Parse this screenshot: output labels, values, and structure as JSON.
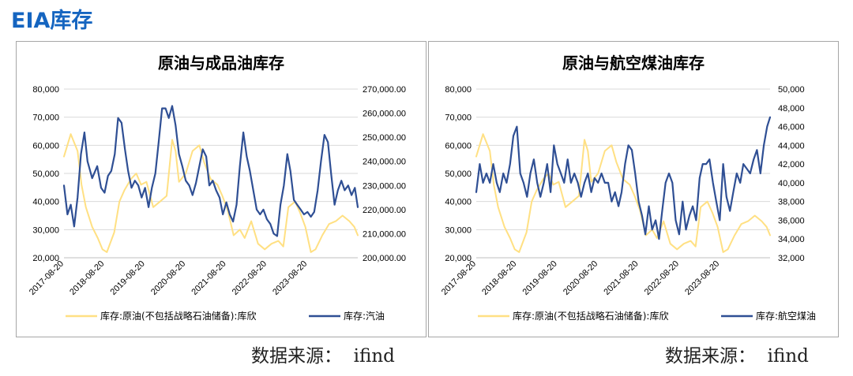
{
  "page": {
    "title": "EIA库存"
  },
  "sources": {
    "left": "数据来源：  ifind",
    "right": "数据来源：  ifind"
  },
  "colors": {
    "crude": "#ffe083",
    "product": "#2f4f94",
    "grid": "#d9d9d9",
    "axis": "#bfbfbf"
  },
  "chart_data": [
    {
      "type": "line",
      "title": "原油与成品油库存",
      "x_ticks": [
        "2017-08-20",
        "2018-08-20",
        "2019-08-20",
        "2020-08-20",
        "2021-08-20",
        "2022-08-20",
        "2023-08-20"
      ],
      "x_range": [
        "2017-08-20",
        "2024-11-15"
      ],
      "y_left": {
        "range": [
          20000,
          80000
        ],
        "ticks": [
          "20,000",
          "30,000",
          "40,000",
          "50,000",
          "60,000",
          "70,000",
          "80,000"
        ]
      },
      "y_right": {
        "range": [
          200000,
          270000
        ],
        "ticks": [
          "200,000.00",
          "210,000.00",
          "220,000.00",
          "230,000.00",
          "240,000.00",
          "250,000.00",
          "260,000.00",
          "270,000.00"
        ]
      },
      "grid": true,
      "legend_position": "bottom",
      "series": [
        {
          "name": "库存:原油(不包括战略石油储备):库欣",
          "axis": "left",
          "color": "#ffe083",
          "x": [
            "2017-08-20",
            "2017-10-20",
            "2017-12-20",
            "2018-01-25",
            "2018-03-05",
            "2018-05-01",
            "2018-06-20",
            "2018-08-01",
            "2018-09-10",
            "2018-11-15",
            "2019-01-01",
            "2019-02-15",
            "2019-04-15",
            "2019-06-01",
            "2019-07-15",
            "2019-09-01",
            "2019-11-01",
            "2020-01-01",
            "2020-03-01",
            "2020-04-20",
            "2020-05-20",
            "2020-06-20",
            "2020-08-20",
            "2020-10-20",
            "2020-12-20",
            "2021-02-01",
            "2021-04-01",
            "2021-06-01",
            "2021-07-15",
            "2021-09-01",
            "2021-10-25",
            "2021-12-20",
            "2022-02-01",
            "2022-04-01",
            "2022-06-01",
            "2022-08-01",
            "2022-10-01",
            "2022-12-01",
            "2023-01-15",
            "2023-03-01",
            "2023-05-01",
            "2023-06-15",
            "2023-08-01",
            "2023-09-20",
            "2023-11-01",
            "2024-01-01",
            "2024-03-01",
            "2024-05-01",
            "2024-07-01",
            "2024-09-01",
            "2024-10-15",
            "2024-11-15"
          ],
          "y": [
            56000,
            64000,
            58000,
            46000,
            38000,
            31000,
            27000,
            23000,
            22000,
            29000,
            40000,
            44000,
            48000,
            50000,
            46000,
            47000,
            38000,
            40000,
            42000,
            62000,
            58000,
            47000,
            50000,
            58000,
            60000,
            54000,
            48000,
            46000,
            42000,
            37000,
            28000,
            30000,
            27000,
            33000,
            25000,
            23000,
            25000,
            26000,
            24000,
            38000,
            40000,
            36000,
            31000,
            22000,
            23000,
            28000,
            32000,
            33000,
            35000,
            33000,
            31000,
            28000
          ]
        },
        {
          "name": "库存:汽油",
          "axis": "right",
          "color": "#2f4f94",
          "x": [
            "2017-08-20",
            "2017-09-20",
            "2017-10-20",
            "2017-11-20",
            "2017-12-20",
            "2018-01-20",
            "2018-02-20",
            "2018-03-20",
            "2018-05-01",
            "2018-06-15",
            "2018-07-20",
            "2018-08-20",
            "2018-09-20",
            "2018-10-20",
            "2018-11-20",
            "2018-12-20",
            "2019-01-20",
            "2019-02-20",
            "2019-03-20",
            "2019-04-20",
            "2019-05-20",
            "2019-06-20",
            "2019-07-20",
            "2019-08-20",
            "2019-09-20",
            "2019-10-20",
            "2019-11-20",
            "2019-12-20",
            "2020-01-20",
            "2020-02-20",
            "2020-03-20",
            "2020-04-20",
            "2020-05-20",
            "2020-06-20",
            "2020-07-20",
            "2020-08-20",
            "2020-09-20",
            "2020-10-20",
            "2020-11-20",
            "2020-12-20",
            "2021-01-20",
            "2021-02-20",
            "2021-03-20",
            "2021-04-20",
            "2021-05-20",
            "2021-06-20",
            "2021-07-20",
            "2021-08-20",
            "2021-09-20",
            "2021-10-20",
            "2021-11-20",
            "2021-12-20",
            "2022-01-20",
            "2022-02-20",
            "2022-03-20",
            "2022-04-20",
            "2022-05-20",
            "2022-06-20",
            "2022-07-20",
            "2022-08-20",
            "2022-09-20",
            "2022-10-20",
            "2022-11-20",
            "2022-12-20",
            "2023-01-20",
            "2023-02-20",
            "2023-03-20",
            "2023-04-20",
            "2023-05-20",
            "2023-06-20",
            "2023-07-20",
            "2023-08-20",
            "2023-09-20",
            "2023-10-20",
            "2023-11-20",
            "2023-12-20",
            "2024-01-20",
            "2024-02-20",
            "2024-03-20",
            "2024-04-20",
            "2024-05-20",
            "2024-06-20",
            "2024-07-20",
            "2024-08-20",
            "2024-09-20",
            "2024-10-20",
            "2024-11-15"
          ],
          "y": [
            230000,
            218000,
            222000,
            213000,
            225000,
            243000,
            252000,
            240000,
            233000,
            238000,
            229000,
            227000,
            234000,
            236000,
            243000,
            258000,
            256000,
            245000,
            236000,
            229000,
            232000,
            230000,
            225000,
            229000,
            221000,
            229000,
            235000,
            248000,
            262000,
            262000,
            258000,
            263000,
            255000,
            243000,
            238000,
            232000,
            230000,
            226000,
            231000,
            238000,
            245000,
            242000,
            230000,
            232000,
            228000,
            225000,
            218000,
            223000,
            218000,
            215000,
            222000,
            238000,
            252000,
            242000,
            236000,
            228000,
            220000,
            218000,
            220000,
            216000,
            214000,
            210000,
            209000,
            222000,
            230000,
            243000,
            236000,
            224000,
            222000,
            220000,
            218000,
            219000,
            217000,
            219000,
            228000,
            240000,
            251000,
            248000,
            235000,
            222000,
            228000,
            232000,
            228000,
            230000,
            226000,
            229000,
            221000
          ]
        }
      ]
    },
    {
      "type": "line",
      "title": "原油与航空煤油库存",
      "x_ticks": [
        "2017-08-20",
        "2018-08-20",
        "2019-08-20",
        "2020-08-20",
        "2021-08-20",
        "2022-08-20",
        "2023-08-20"
      ],
      "x_range": [
        "2017-08-20",
        "2024-11-15"
      ],
      "y_left": {
        "range": [
          20000,
          80000
        ],
        "ticks": [
          "20,000",
          "30,000",
          "40,000",
          "50,000",
          "60,000",
          "70,000",
          "80,000"
        ]
      },
      "y_right": {
        "range": [
          32000,
          50000
        ],
        "ticks": [
          "32,000",
          "34,000",
          "36,000",
          "38,000",
          "40,000",
          "42,000",
          "44,000",
          "46,000",
          "48,000",
          "50,000"
        ]
      },
      "grid": true,
      "legend_position": "bottom",
      "series": [
        {
          "name": "库存:原油(不包括战略石油储备):库欣",
          "axis": "left",
          "color": "#ffe083",
          "x": [
            "2017-08-20",
            "2017-10-20",
            "2017-12-20",
            "2018-01-25",
            "2018-03-05",
            "2018-05-01",
            "2018-06-20",
            "2018-08-01",
            "2018-09-10",
            "2018-11-15",
            "2019-01-01",
            "2019-02-15",
            "2019-04-15",
            "2019-06-01",
            "2019-07-15",
            "2019-09-01",
            "2019-11-01",
            "2020-01-01",
            "2020-03-01",
            "2020-04-20",
            "2020-05-20",
            "2020-06-20",
            "2020-08-20",
            "2020-10-20",
            "2020-12-20",
            "2021-02-01",
            "2021-04-01",
            "2021-06-01",
            "2021-07-15",
            "2021-09-01",
            "2021-10-25",
            "2021-12-20",
            "2022-02-01",
            "2022-04-01",
            "2022-06-01",
            "2022-08-01",
            "2022-10-01",
            "2022-12-01",
            "2023-01-15",
            "2023-03-01",
            "2023-05-01",
            "2023-06-15",
            "2023-08-01",
            "2023-09-20",
            "2023-11-01",
            "2024-01-01",
            "2024-03-01",
            "2024-05-01",
            "2024-07-01",
            "2024-09-01",
            "2024-10-15",
            "2024-11-15"
          ],
          "y": [
            56000,
            64000,
            58000,
            46000,
            38000,
            31000,
            27000,
            23000,
            22000,
            29000,
            40000,
            44000,
            48000,
            50000,
            46000,
            47000,
            38000,
            40000,
            42000,
            62000,
            58000,
            47000,
            50000,
            58000,
            60000,
            54000,
            48000,
            46000,
            42000,
            37000,
            28000,
            30000,
            27000,
            33000,
            25000,
            23000,
            25000,
            26000,
            24000,
            38000,
            40000,
            36000,
            31000,
            22000,
            23000,
            28000,
            32000,
            33000,
            35000,
            33000,
            31000,
            28000
          ]
        },
        {
          "name": "库存:航空煤油",
          "axis": "right",
          "color": "#2f4f94",
          "x": [
            "2017-08-20",
            "2017-09-20",
            "2017-10-20",
            "2017-11-20",
            "2017-12-20",
            "2018-01-20",
            "2018-02-20",
            "2018-03-20",
            "2018-04-20",
            "2018-05-20",
            "2018-06-20",
            "2018-07-20",
            "2018-08-20",
            "2018-09-20",
            "2018-10-20",
            "2018-11-20",
            "2018-12-20",
            "2019-01-20",
            "2019-02-20",
            "2019-03-20",
            "2019-04-20",
            "2019-05-20",
            "2019-06-20",
            "2019-07-20",
            "2019-08-20",
            "2019-09-20",
            "2019-10-20",
            "2019-11-20",
            "2019-12-20",
            "2020-01-20",
            "2020-02-20",
            "2020-03-20",
            "2020-04-20",
            "2020-05-20",
            "2020-06-20",
            "2020-07-20",
            "2020-08-20",
            "2020-09-20",
            "2020-10-20",
            "2020-11-20",
            "2020-12-20",
            "2021-01-20",
            "2021-02-20",
            "2021-03-20",
            "2021-04-20",
            "2021-05-20",
            "2021-06-20",
            "2021-07-20",
            "2021-08-20",
            "2021-09-20",
            "2021-10-20",
            "2021-11-20",
            "2021-12-20",
            "2022-01-20",
            "2022-02-20",
            "2022-03-20",
            "2022-04-20",
            "2022-05-20",
            "2022-06-20",
            "2022-07-20",
            "2022-08-20",
            "2022-09-20",
            "2022-10-20",
            "2022-11-20",
            "2022-12-20",
            "2023-01-20",
            "2023-02-20",
            "2023-03-20",
            "2023-04-20",
            "2023-05-20",
            "2023-06-20",
            "2023-07-20",
            "2023-08-20",
            "2023-09-20",
            "2023-10-20",
            "2023-11-20",
            "2023-12-20",
            "2024-01-20",
            "2024-02-20",
            "2024-03-20",
            "2024-04-20",
            "2024-05-20",
            "2024-06-20",
            "2024-07-20",
            "2024-08-20",
            "2024-09-20",
            "2024-10-20",
            "2024-11-15"
          ],
          "y": [
            39000,
            42000,
            40000,
            41000,
            40000,
            42000,
            40000,
            39000,
            41000,
            40000,
            42000,
            45000,
            46000,
            41000,
            40000,
            38500,
            41000,
            42500,
            40000,
            38500,
            40000,
            42000,
            39000,
            44000,
            42000,
            41000,
            40000,
            42500,
            40000,
            41000,
            40000,
            38500,
            40000,
            41000,
            39000,
            40500,
            40000,
            41000,
            40000,
            40000,
            38000,
            39000,
            37500,
            39000,
            42000,
            44000,
            43500,
            41000,
            38000,
            36500,
            34500,
            37500,
            35000,
            36000,
            34000,
            37000,
            40000,
            41000,
            40000,
            36000,
            34500,
            38000,
            35000,
            36500,
            37500,
            36000,
            40500,
            42000,
            42000,
            42500,
            40000,
            38000,
            36000,
            42000,
            38500,
            37000,
            39000,
            41000,
            40000,
            42000,
            41500,
            41000,
            42500,
            43500,
            41000,
            44000,
            46000,
            47000
          ]
        }
      ]
    }
  ]
}
